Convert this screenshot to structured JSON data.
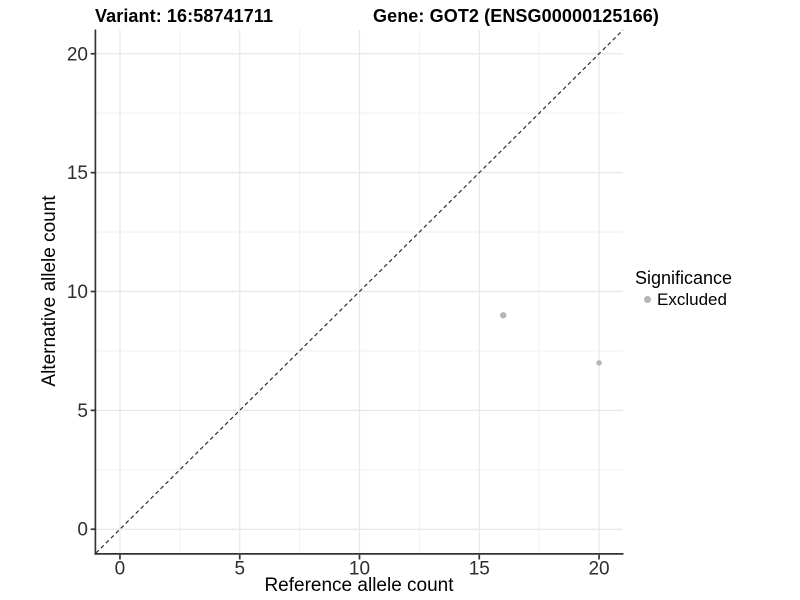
{
  "title": {
    "variant": "Variant: 16:58741711",
    "gene": "Gene: GOT2 (ENSG00000125166)"
  },
  "axes": {
    "x_label": "Reference allele count",
    "y_label": "Alternative allele count"
  },
  "legend": {
    "title": "Significance",
    "items": [
      {
        "label": "Excluded",
        "marker": "circle-icon",
        "color": "#b5b5b5"
      }
    ]
  },
  "chart_data": {
    "type": "scatter",
    "title": "Variant: 16:58741711   Gene: GOT2 (ENSG00000125166)",
    "xlabel": "Reference allele count",
    "ylabel": "Alternative allele count",
    "xlim": [
      -1,
      21
    ],
    "ylim": [
      -1,
      21
    ],
    "x_ticks": [
      0,
      5,
      10,
      15,
      20
    ],
    "y_ticks": [
      0,
      5,
      10,
      15,
      20
    ],
    "x_minor_ticks": [
      2.5,
      7.5,
      12.5,
      17.5
    ],
    "y_minor_ticks": [
      2.5,
      7.5,
      12.5,
      17.5
    ],
    "grid": "major+minor",
    "legend_position": "right",
    "series": [
      {
        "name": "Excluded",
        "color": "#b5b5b5",
        "points": [
          {
            "x": 16,
            "y": 9,
            "r": 3.2
          },
          {
            "x": 20,
            "y": 7,
            "r": 2.7
          }
        ]
      }
    ],
    "reference_line": {
      "type": "identity",
      "from": [
        -1,
        -1
      ],
      "to": [
        21,
        21
      ],
      "style": "dashed",
      "color": "#2e2e2e"
    },
    "colors": {
      "grid_major": "#e7e7e7",
      "grid_minor": "#f2f2f2",
      "axis_line": "#333333",
      "tick_label": "#2e2e2e",
      "point": "#b5b5b5"
    }
  }
}
